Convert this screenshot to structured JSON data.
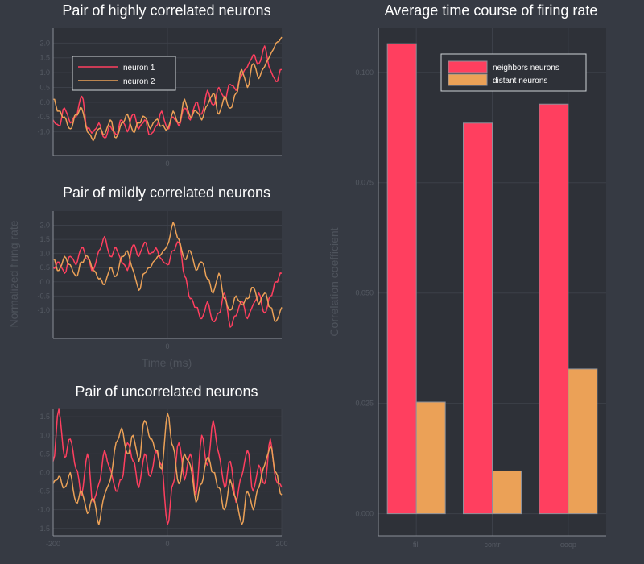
{
  "colors": {
    "background": "#363a43",
    "plot_bg": "#2e3138",
    "grid": "#3c4049",
    "axis": "#8b8f97",
    "tick_text": "#555a63",
    "axis_label": "#4e535c",
    "title": "#ffffff",
    "neuron1": "#ff3f5f",
    "neuron2": "#eba157",
    "bar_neighbors": "#ff3f5f",
    "bar_distant": "#eba157",
    "bar_outline": "#8c909a",
    "legend_text": "#ffffff"
  },
  "chart_data": [
    {
      "id": "high",
      "type": "line",
      "title": "Pair of highly correlated neurons",
      "legend": {
        "placement": "top-left",
        "entries": [
          "neuron 1",
          "neuron 2"
        ]
      },
      "xlim": [
        -200,
        200
      ],
      "ylim": [
        -1.8,
        2.5
      ],
      "x_ticks": [
        {
          "value": 0,
          "label": "0"
        }
      ],
      "y_ticks": [
        {
          "value": -1.0,
          "label": "-1.0"
        },
        {
          "value": -0.5,
          "label": "-0.5"
        },
        {
          "value": 0.0,
          "label": "0.0"
        },
        {
          "value": 0.5,
          "label": "0.5"
        },
        {
          "value": 1.0,
          "label": "1.0"
        },
        {
          "value": 1.5,
          "label": "1.5"
        },
        {
          "value": 2.0,
          "label": "2.0"
        }
      ],
      "series": [
        {
          "name": "neuron 1",
          "x": [
            -200,
            -190,
            -180,
            -170,
            -160,
            -150,
            -140,
            -130,
            -120,
            -110,
            -100,
            -90,
            -80,
            -70,
            -60,
            -50,
            -40,
            -30,
            -20,
            -10,
            0,
            10,
            20,
            30,
            40,
            50,
            60,
            70,
            80,
            90,
            100,
            110,
            120,
            130,
            140,
            150,
            160,
            170,
            180,
            190,
            200
          ],
          "values": [
            -0.6,
            -0.8,
            -0.2,
            -0.7,
            -0.5,
            0.2,
            -0.9,
            -1.0,
            -0.7,
            -1.2,
            -0.8,
            -1.1,
            -0.6,
            -1.0,
            -0.4,
            -0.9,
            -0.6,
            -1.1,
            -0.8,
            -0.3,
            -0.9,
            -0.5,
            -0.8,
            -0.2,
            -0.6,
            0.0,
            -0.4,
            0.4,
            -0.1,
            0.5,
            0.1,
            0.6,
            0.4,
            0.9,
            1.2,
            1.6,
            1.3,
            1.9,
            1.1,
            0.7,
            1.1
          ]
        },
        {
          "name": "neuron 2",
          "x": [
            -200,
            -190,
            -180,
            -170,
            -160,
            -150,
            -140,
            -130,
            -120,
            -110,
            -100,
            -90,
            -80,
            -70,
            -60,
            -50,
            -40,
            -30,
            -20,
            -10,
            0,
            10,
            20,
            30,
            40,
            50,
            60,
            70,
            80,
            90,
            100,
            110,
            120,
            130,
            140,
            150,
            160,
            170,
            180,
            190,
            200
          ],
          "values": [
            0.1,
            -0.3,
            -0.5,
            -0.9,
            -0.4,
            -0.2,
            -1.0,
            -1.3,
            -0.9,
            -1.1,
            -0.6,
            -1.2,
            -0.7,
            -0.4,
            -1.0,
            -0.7,
            -0.5,
            -0.9,
            -0.6,
            -0.8,
            -0.9,
            -0.3,
            -0.7,
            0.1,
            -0.5,
            -0.3,
            -0.6,
            -0.1,
            0.3,
            -0.4,
            0.2,
            -0.2,
            0.3,
            1.1,
            0.5,
            1.3,
            0.8,
            1.2,
            1.6,
            2.0,
            2.2
          ]
        }
      ]
    },
    {
      "id": "mild",
      "type": "line",
      "title": "Pair of mildly correlated neurons",
      "xlabel": "Time (ms)",
      "xlim": [
        -200,
        200
      ],
      "ylim": [
        -2.0,
        2.5
      ],
      "x_ticks": [
        {
          "value": 0,
          "label": "0"
        }
      ],
      "y_ticks": [
        {
          "value": -1.0,
          "label": "-1.0"
        },
        {
          "value": -0.5,
          "label": "-0.5"
        },
        {
          "value": 0.0,
          "label": "0.0"
        },
        {
          "value": 0.5,
          "label": "0.5"
        },
        {
          "value": 1.0,
          "label": "1.0"
        },
        {
          "value": 1.5,
          "label": "1.5"
        },
        {
          "value": 2.0,
          "label": "2.0"
        }
      ],
      "series": [
        {
          "name": "neuron 1",
          "x": [
            -200,
            -190,
            -180,
            -170,
            -160,
            -150,
            -140,
            -130,
            -120,
            -110,
            -100,
            -90,
            -80,
            -70,
            -60,
            -50,
            -40,
            -30,
            -20,
            -10,
            0,
            10,
            20,
            30,
            40,
            50,
            60,
            70,
            80,
            90,
            100,
            110,
            120,
            130,
            140,
            150,
            160,
            170,
            180,
            190,
            200
          ],
          "values": [
            0.5,
            0.7,
            0.3,
            0.9,
            0.6,
            1.2,
            0.8,
            0.4,
            1.1,
            1.6,
            0.9,
            1.2,
            0.7,
            0.4,
            1.3,
            0.9,
            1.4,
            1.0,
            1.2,
            0.8,
            0.6,
            1.1,
            1.4,
            0.2,
            -0.6,
            -0.9,
            -1.3,
            -0.7,
            -1.4,
            -1.1,
            -0.4,
            -1.6,
            -1.2,
            -0.7,
            -1.3,
            -0.8,
            -0.4,
            -1.1,
            -0.5,
            0.0,
            0.3
          ]
        },
        {
          "name": "neuron 2",
          "x": [
            -200,
            -190,
            -180,
            -170,
            -160,
            -150,
            -140,
            -130,
            -120,
            -110,
            -100,
            -90,
            -80,
            -70,
            -60,
            -50,
            -40,
            -30,
            -20,
            -10,
            0,
            10,
            20,
            30,
            40,
            50,
            60,
            70,
            80,
            90,
            100,
            110,
            120,
            130,
            140,
            150,
            160,
            170,
            180,
            190,
            200
          ],
          "values": [
            0.8,
            0.4,
            0.9,
            0.6,
            0.2,
            0.7,
            0.9,
            0.4,
            0.1,
            -0.1,
            0.5,
            0.2,
            0.9,
            1.1,
            0.4,
            -0.3,
            0.3,
            0.5,
            0.8,
            1.0,
            1.3,
            2.1,
            1.5,
            0.8,
            1.1,
            0.4,
            0.7,
            0.1,
            -0.4,
            0.3,
            -0.6,
            -1.0,
            -0.5,
            -0.8,
            -0.6,
            -0.2,
            -0.8,
            -0.4,
            -0.9,
            -1.4,
            -0.9
          ]
        }
      ]
    },
    {
      "id": "uncorr",
      "type": "line",
      "title": "Pair of uncorrelated neurons",
      "xlim": [
        -200,
        200
      ],
      "ylim": [
        -1.7,
        1.7
      ],
      "x_ticks": [
        {
          "value": -200,
          "label": "-200"
        },
        {
          "value": 0,
          "label": "0"
        },
        {
          "value": 200,
          "label": "200"
        }
      ],
      "y_ticks": [
        {
          "value": -1.5,
          "label": "-1.5"
        },
        {
          "value": -1.0,
          "label": "-1.0"
        },
        {
          "value": -0.5,
          "label": "-0.5"
        },
        {
          "value": 0.0,
          "label": "0.0"
        },
        {
          "value": 0.5,
          "label": "0.5"
        },
        {
          "value": 1.0,
          "label": "1.0"
        },
        {
          "value": 1.5,
          "label": "1.5"
        }
      ],
      "series": [
        {
          "name": "neuron 1",
          "x": [
            -200,
            -190,
            -180,
            -170,
            -160,
            -150,
            -140,
            -130,
            -120,
            -110,
            -100,
            -90,
            -80,
            -70,
            -60,
            -50,
            -40,
            -30,
            -20,
            -10,
            0,
            10,
            20,
            30,
            40,
            50,
            60,
            70,
            80,
            90,
            100,
            110,
            120,
            130,
            140,
            150,
            160,
            170,
            180,
            190,
            200
          ],
          "values": [
            0.3,
            1.7,
            0.4,
            0.9,
            0.1,
            -0.6,
            0.5,
            -0.8,
            -0.3,
            0.6,
            0.1,
            -0.5,
            -0.2,
            0.8,
            0.3,
            -0.4,
            0.5,
            -0.1,
            0.6,
            0.2,
            -1.4,
            -0.3,
            0.8,
            -0.2,
            0.5,
            -0.6,
            1.0,
            0.2,
            1.4,
            0.5,
            -0.4,
            0.3,
            -0.8,
            -0.1,
            0.6,
            -0.5,
            0.2,
            -0.3,
            0.9,
            -0.2,
            -0.4
          ]
        },
        {
          "name": "neuron 2",
          "x": [
            -200,
            -190,
            -180,
            -170,
            -160,
            -150,
            -140,
            -130,
            -120,
            -110,
            -100,
            -90,
            -80,
            -70,
            -60,
            -50,
            -40,
            -30,
            -20,
            -10,
            0,
            10,
            20,
            30,
            40,
            50,
            60,
            70,
            80,
            90,
            100,
            110,
            120,
            130,
            140,
            150,
            160,
            170,
            180,
            190,
            200
          ],
          "values": [
            -0.3,
            -0.1,
            -0.4,
            0.0,
            -0.8,
            -0.5,
            -1.1,
            -0.7,
            -1.4,
            -0.6,
            -0.2,
            0.8,
            1.2,
            0.5,
            1.0,
            0.3,
            1.4,
            0.9,
            0.6,
            0.1,
            1.6,
            0.7,
            -0.3,
            0.5,
            0.2,
            -0.8,
            -0.3,
            0.4,
            0.0,
            -0.4,
            -1.0,
            -0.2,
            -0.7,
            -1.4,
            -0.5,
            -1.0,
            -0.4,
            0.2,
            0.7,
            0.0,
            -0.6
          ]
        }
      ]
    },
    {
      "id": "bars",
      "type": "bar",
      "title": "Average time course of firing rate",
      "ylabel": "Correlation coefficient",
      "categories": [
        "fill",
        "contr",
        "ooop"
      ],
      "ylim": [
        -0.005,
        0.11
      ],
      "y_ticks": [
        {
          "value": 0.0,
          "label": "0.000"
        },
        {
          "value": 0.025,
          "label": "0.025"
        },
        {
          "value": 0.05,
          "label": "0.050"
        },
        {
          "value": 0.075,
          "label": "0.075"
        },
        {
          "value": 0.1,
          "label": "0.100"
        }
      ],
      "legend": {
        "placement": "top-right",
        "entries": [
          "neighbors neurons",
          "distant neurons"
        ]
      },
      "series": [
        {
          "name": "neighbors neurons",
          "values": [
            0.1065,
            0.0885,
            0.0928
          ]
        },
        {
          "name": "distant neurons",
          "values": [
            0.0253,
            0.0097,
            0.0328
          ]
        }
      ]
    }
  ],
  "shared_labels": {
    "left_ylabel": "Normalized firing rate"
  }
}
